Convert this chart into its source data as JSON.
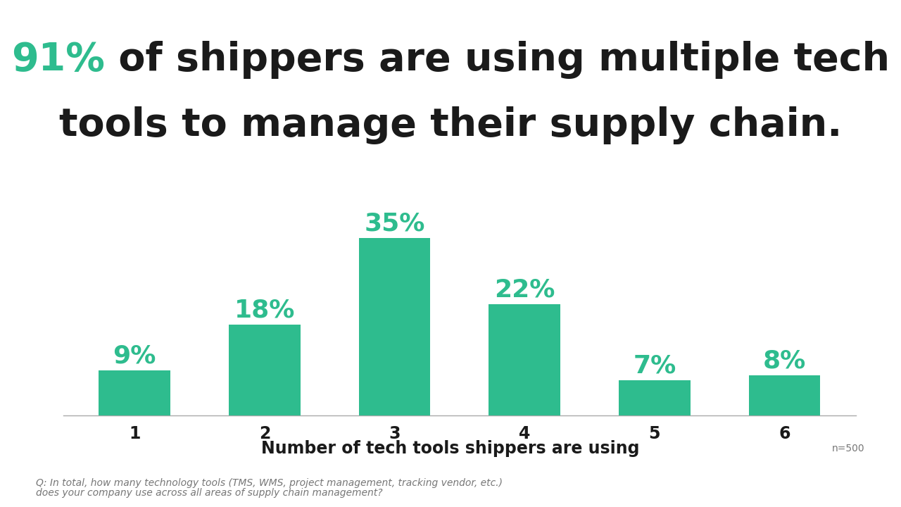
{
  "categories": [
    "1",
    "2",
    "3",
    "4",
    "5",
    "6"
  ],
  "values": [
    9,
    18,
    35,
    22,
    7,
    8
  ],
  "bar_color": "#2ebc8e",
  "background_color": "#ffffff",
  "title_green": "91%",
  "title_green_color": "#2ebc8e",
  "title_black_line1": " of shippers are using multiple tech",
  "title_black_line2": "tools to manage their supply chain.",
  "title_color": "#1a1a1a",
  "xlabel": "Number of tech tools shippers are using",
  "xlabel_color": "#1a1a1a",
  "value_label_color": "#2ebc8e",
  "footnote_line1": "Q: In total, how many technology tools (TMS, WMS, project management, tracking vendor, etc.)",
  "footnote_line2": "does your company use across all areas of supply chain management?",
  "n_label": "n=500",
  "ylim": [
    0,
    42
  ],
  "title_fontsize": 40,
  "bar_label_fontsize": 26,
  "xlabel_fontsize": 17,
  "tick_fontsize": 17,
  "footnote_fontsize": 10,
  "n_label_fontsize": 10
}
